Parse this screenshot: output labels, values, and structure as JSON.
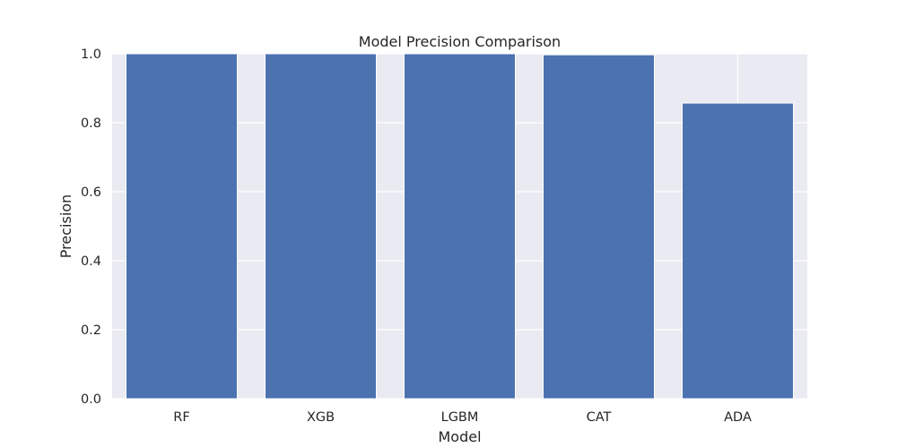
{
  "chart_data": {
    "type": "bar",
    "title": "Model Precision Comparison",
    "xlabel": "Model",
    "ylabel": "Precision",
    "categories": [
      "RF",
      "XGB",
      "LGBM",
      "CAT",
      "ADA"
    ],
    "values": [
      1.0,
      1.0,
      1.0,
      0.997,
      0.857
    ],
    "ylim": [
      0,
      1.0
    ],
    "yticks": [
      "0.0",
      "0.2",
      "0.4",
      "0.6",
      "0.8",
      "1.0"
    ],
    "grid": true,
    "bar_color": "#4c72b0",
    "plot_background": "#eaeaf2",
    "grid_color": "#ffffff"
  }
}
